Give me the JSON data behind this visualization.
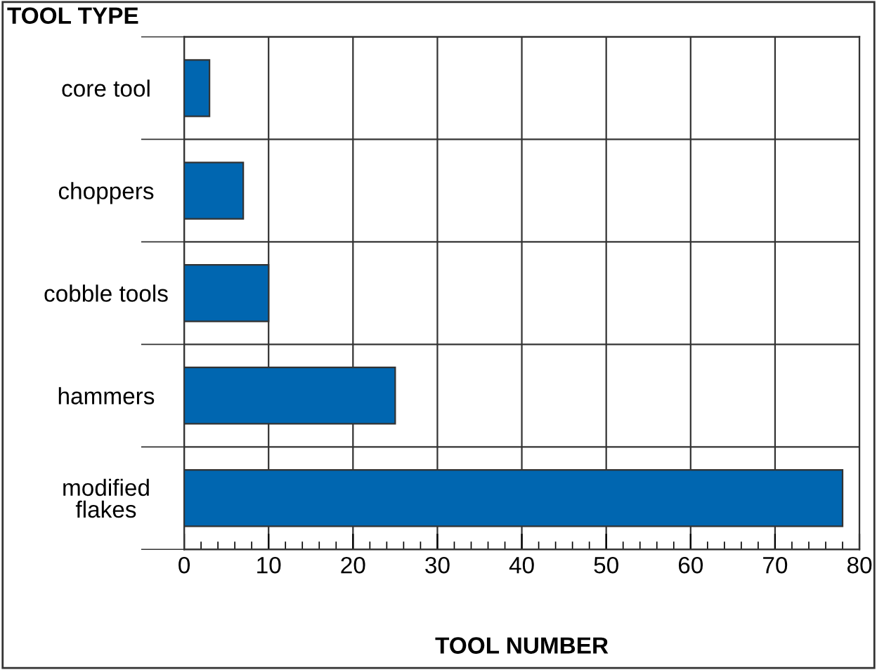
{
  "chart_data": {
    "type": "bar",
    "orientation": "horizontal",
    "xlabel": "TOOL NUMBER",
    "ylabel": "TOOL TYPE",
    "categories": [
      "core tool",
      "choppers",
      "cobble tools",
      "hammers",
      "modified\nflakes"
    ],
    "values": [
      3,
      7,
      10,
      25,
      78
    ],
    "color": "#0066b0",
    "xlim": [
      0,
      80
    ],
    "xticks": [
      0,
      10,
      20,
      30,
      40,
      50,
      60,
      70,
      80
    ],
    "grid": true
  }
}
